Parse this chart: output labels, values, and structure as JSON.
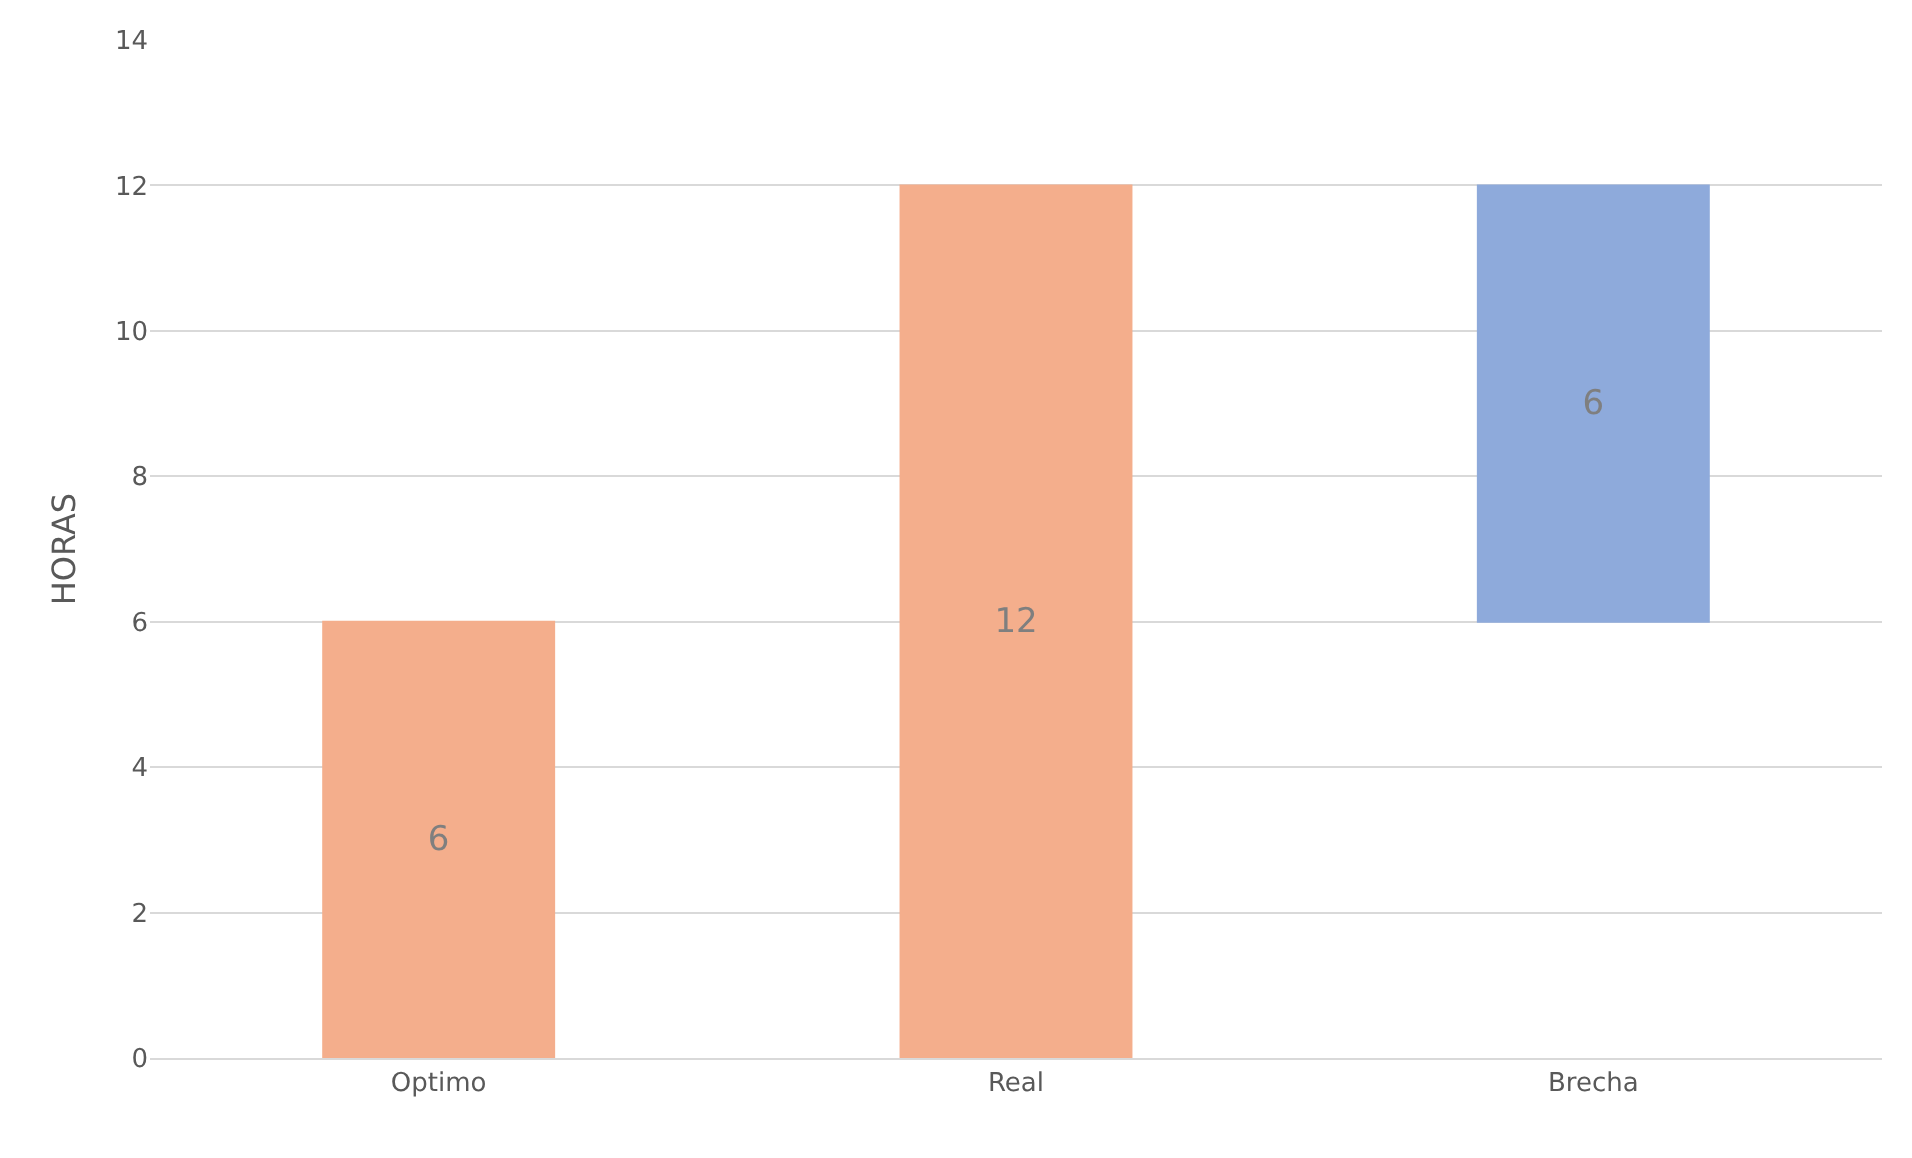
{
  "chart_data": {
    "type": "bar",
    "ylabel": "HORAS",
    "categories": [
      "Optimo",
      "Real",
      "Brecha"
    ],
    "values": [
      6,
      12,
      6
    ],
    "base": [
      0,
      0,
      6
    ],
    "colors": [
      "#f4ae8c",
      "#f4ae8c",
      "#8eaadb"
    ],
    "ylim": [
      0,
      14
    ],
    "yticks": [
      0,
      2,
      4,
      6,
      8,
      10,
      12,
      14
    ],
    "grid": "y",
    "data_labels": true
  }
}
